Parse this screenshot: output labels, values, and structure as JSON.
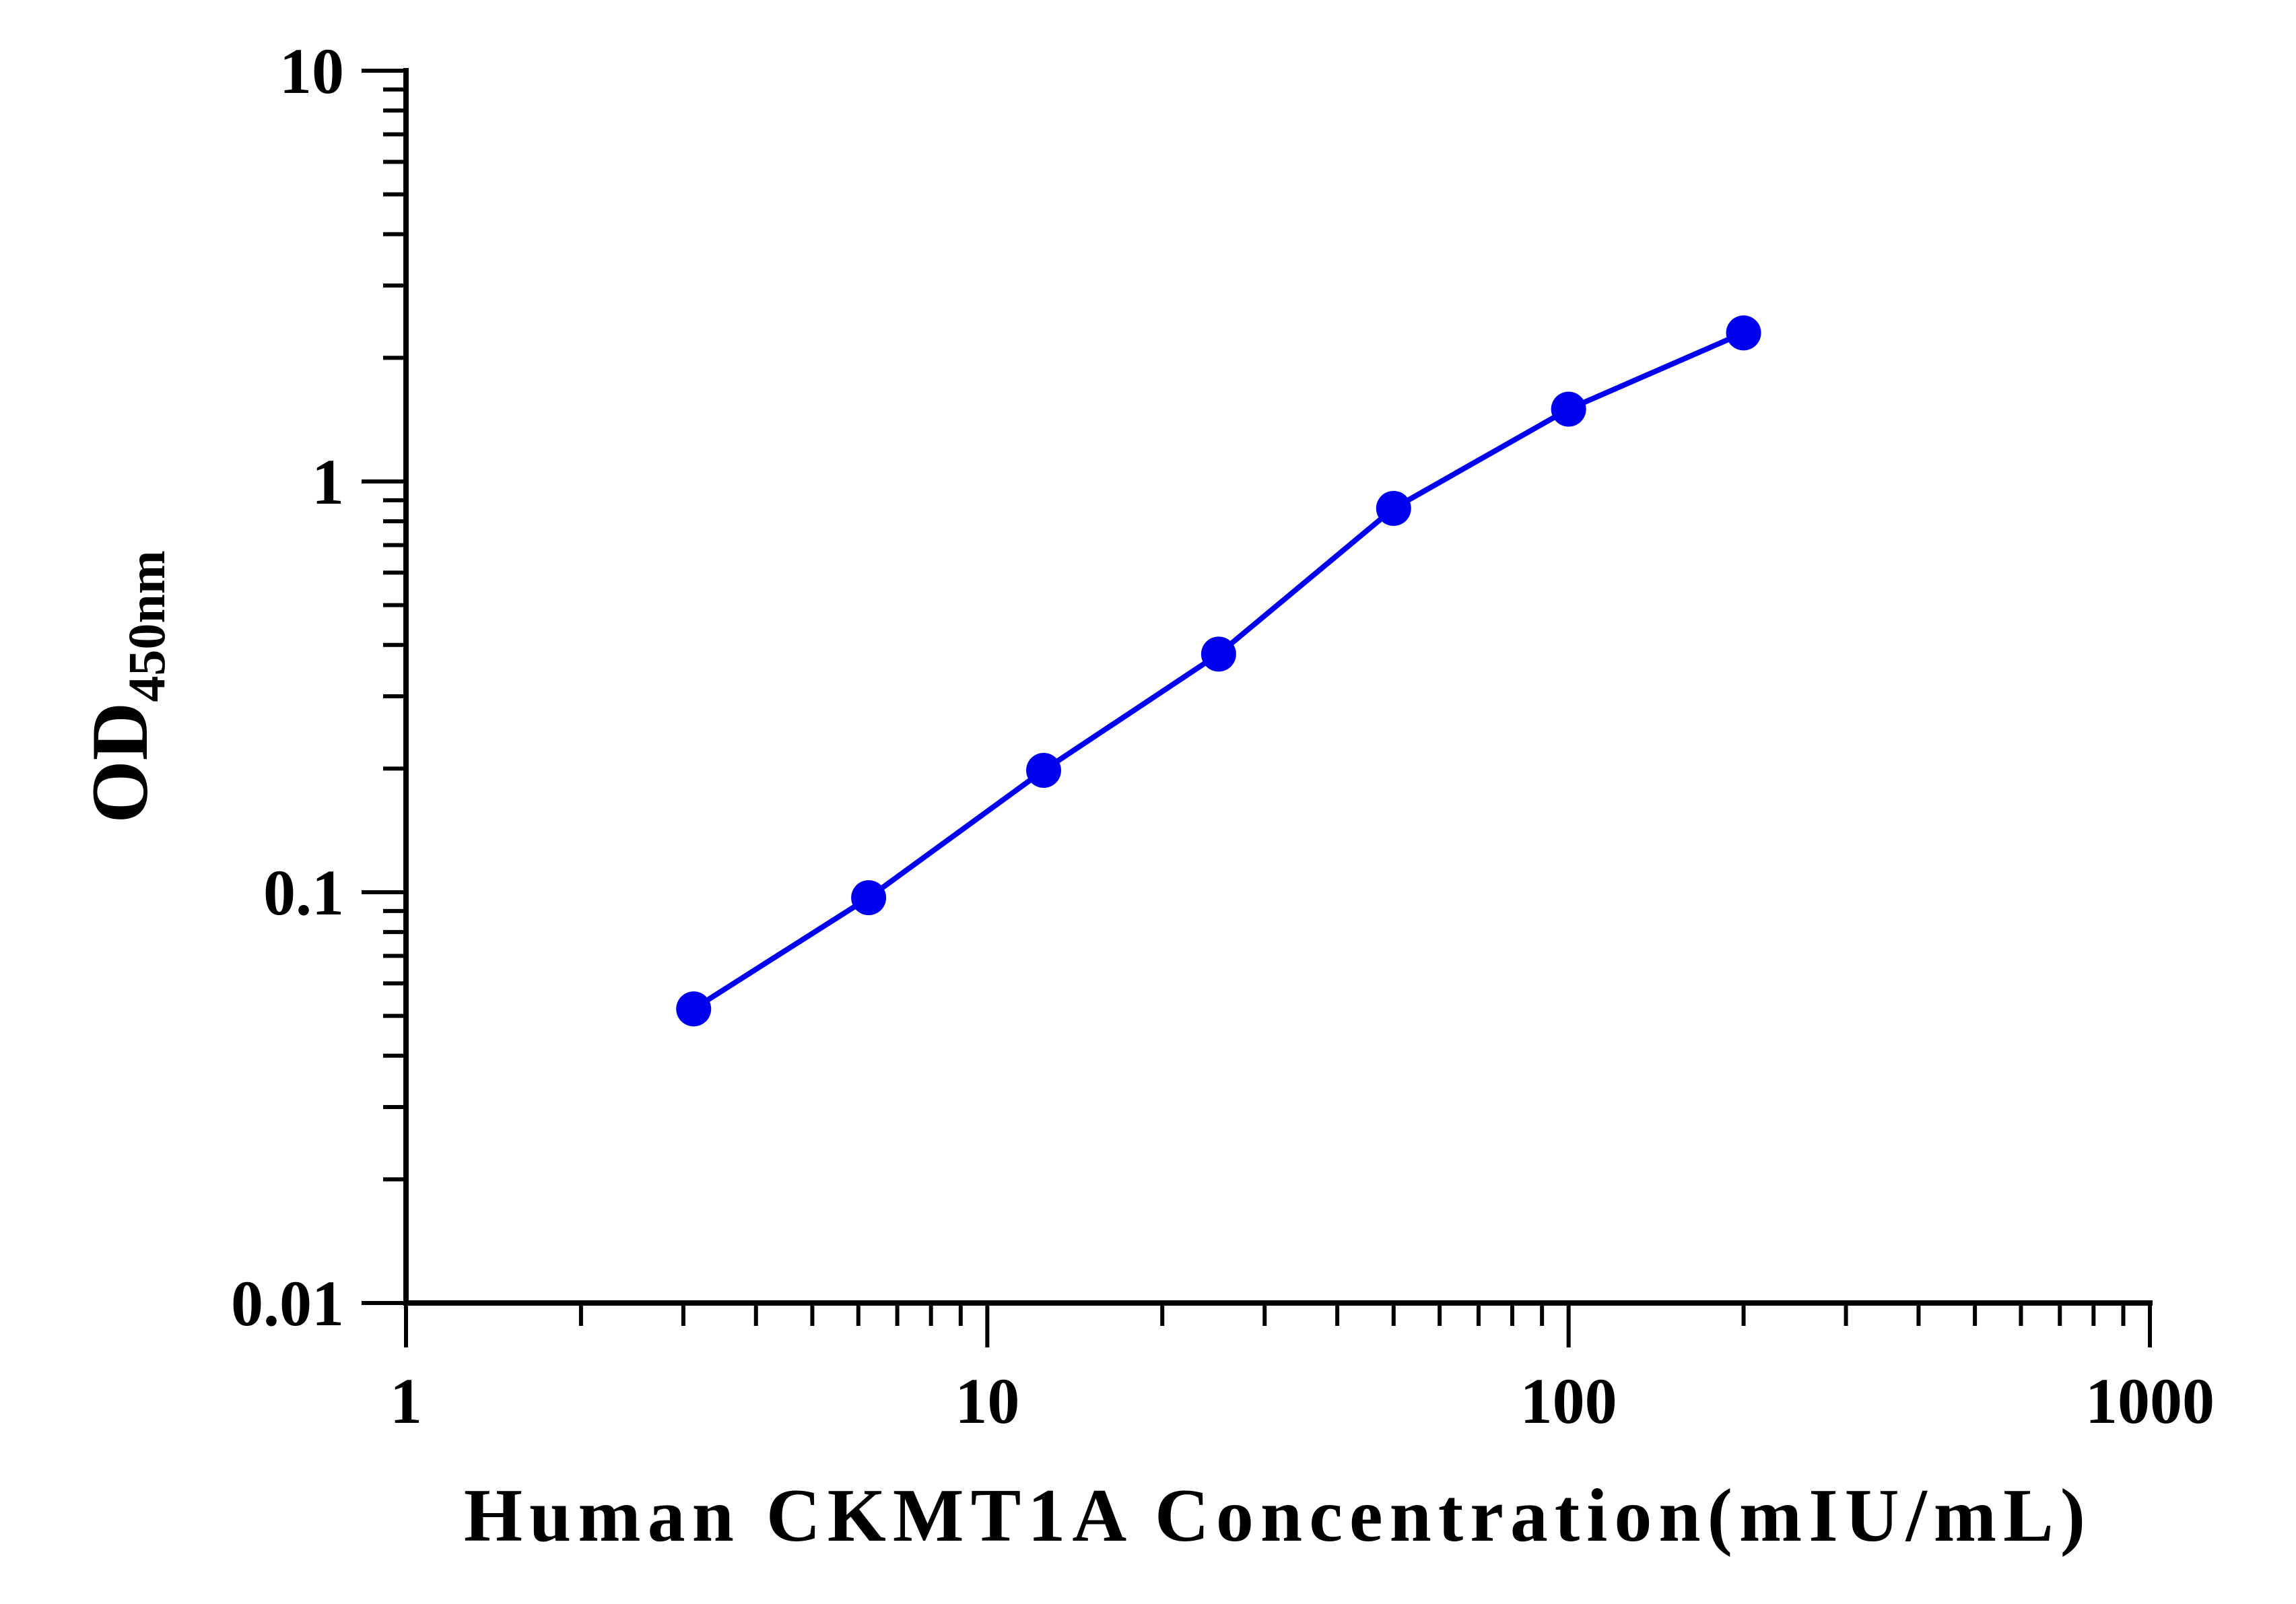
{
  "chart_data": {
    "type": "line",
    "xscale": "log",
    "yscale": "log",
    "xlim": [
      1,
      1000
    ],
    "ylim": [
      0.01,
      10
    ],
    "xlabel": "Human CKMT1A Concentration(mIU/mL)",
    "ylabel_main": "OD",
    "ylabel_sub": "450nm",
    "x_ticks": [
      1,
      10,
      100,
      1000
    ],
    "x_tick_labels": [
      "1",
      "10",
      "100",
      "1000"
    ],
    "y_ticks": [
      0.01,
      0.1,
      1,
      10
    ],
    "y_tick_labels": [
      "0.01",
      "0.1",
      "1",
      "10"
    ],
    "grid": false,
    "series": [
      {
        "color": "#0000ee",
        "x": [
          3.125,
          6.25,
          12.5,
          25,
          50,
          100,
          200
        ],
        "y": [
          0.052,
          0.097,
          0.198,
          0.38,
          0.86,
          1.5,
          2.3
        ]
      }
    ]
  }
}
